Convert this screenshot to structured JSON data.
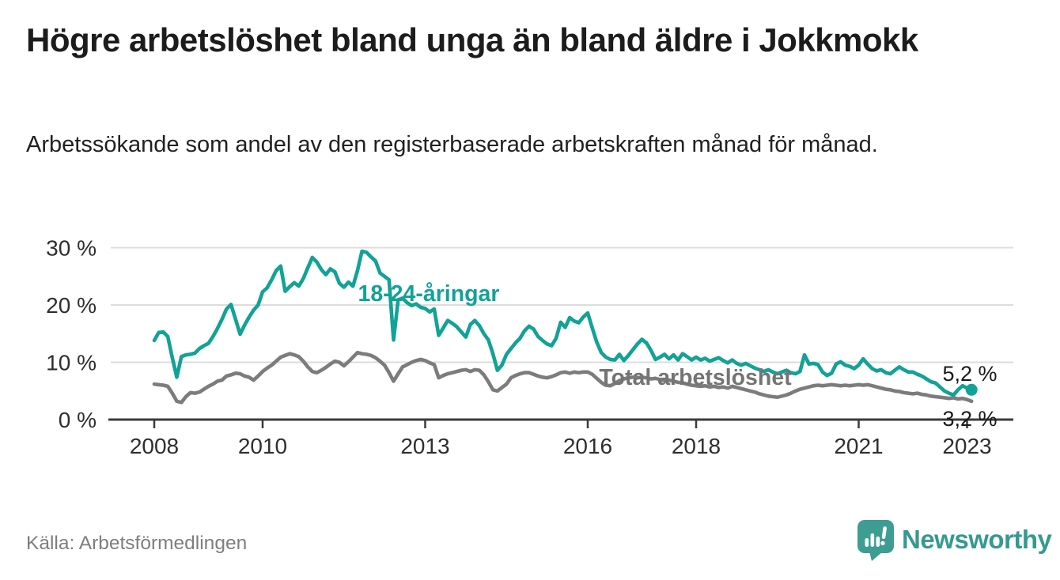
{
  "header": {
    "title": "Högre arbetslöshet bland unga än bland äldre i Jokkmokk",
    "subtitle": "Arbetssökande som andel av den registerbaserade arbetskraften månad för månad."
  },
  "footer": {
    "source": "Källa: Arbetsförmedlingen",
    "logo_text": "Newsworthy"
  },
  "colors": {
    "youth": "#12a296",
    "total": "#7c7c7c",
    "axis": "#3b3b3b",
    "grid": "#dcdcdc",
    "tick_label": "#2e2e2e",
    "end_label": "#191919",
    "total_label": "#747474",
    "logo_teal": "#3d9d93"
  },
  "chart_data": {
    "type": "line",
    "frequency": "monthly",
    "x_start": {
      "year": 2008,
      "month": 1
    },
    "x_end": {
      "year": 2023,
      "month": 2
    },
    "x_tick_years": [
      2008,
      2010,
      2013,
      2016,
      2018,
      2021,
      2023
    ],
    "y_ticks": [
      0,
      10,
      20,
      30
    ],
    "y_tick_suffix": " %",
    "ylim": [
      0,
      31.5
    ],
    "grid": true,
    "legend_position": "inline-labels",
    "series": [
      {
        "name": "18-24-åringar",
        "color": "#12a296",
        "last_value_label": "5,2 %",
        "values": [
          13.8,
          15.2,
          15.3,
          14.5,
          10.8,
          7.4,
          11.0,
          11.3,
          11.4,
          11.6,
          12.4,
          12.9,
          13.3,
          14.5,
          15.9,
          17.5,
          19.3,
          20.1,
          17.5,
          14.9,
          16.5,
          17.9,
          19.1,
          20.0,
          22.3,
          23.0,
          24.4,
          26.0,
          26.8,
          22.4,
          23.2,
          23.9,
          23.3,
          24.6,
          26.5,
          28.3,
          27.5,
          26.2,
          25.3,
          26.3,
          25.8,
          23.8,
          23.1,
          24.0,
          23.3,
          26.0,
          29.4,
          29.2,
          28.4,
          27.7,
          25.6,
          25.0,
          24.4,
          13.9,
          20.9,
          21.2,
          20.4,
          19.9,
          20.2,
          19.6,
          19.4,
          18.8,
          19.3,
          14.7,
          16.0,
          17.3,
          16.8,
          16.2,
          15.3,
          14.4,
          16.6,
          17.3,
          16.4,
          15.0,
          13.9,
          11.5,
          8.6,
          9.5,
          11.4,
          12.4,
          13.4,
          14.2,
          15.5,
          16.3,
          15.8,
          14.5,
          13.8,
          13.2,
          12.9,
          14.2,
          17.0,
          16.1,
          17.8,
          17.2,
          16.9,
          17.9,
          18.6,
          16.0,
          13.5,
          11.7,
          10.9,
          10.5,
          10.4,
          11.4,
          10.3,
          11.2,
          12.2,
          13.2,
          14.0,
          13.4,
          12.1,
          10.5,
          10.9,
          11.4,
          10.6,
          11.3,
          10.4,
          11.5,
          11.0,
          10.4,
          10.9,
          10.4,
          10.7,
          10.2,
          10.5,
          10.8,
          10.3,
          9.9,
          10.4,
          9.8,
          9.5,
          9.8,
          9.4,
          9.0,
          8.7,
          8.4,
          8.7,
          8.3,
          8.0,
          8.3,
          8.6,
          8.2,
          8.0,
          8.4,
          11.3,
          9.7,
          9.8,
          9.6,
          8.3,
          7.7,
          8.1,
          9.7,
          10.1,
          9.5,
          9.3,
          8.9,
          9.5,
          10.6,
          9.7,
          8.9,
          8.5,
          8.7,
          8.2,
          8.0,
          8.6,
          9.2,
          8.7,
          8.3,
          8.3,
          7.9,
          7.6,
          7.1,
          6.6,
          6.4,
          5.7,
          5.0,
          4.6,
          4.3,
          5.2,
          5.9,
          5.5,
          5.2
        ]
      },
      {
        "name": "Total arbetslöshet",
        "color": "#7c7c7c",
        "last_value_label": "3,2 %",
        "values": [
          6.2,
          6.1,
          6.0,
          5.8,
          4.6,
          3.2,
          3.0,
          4.0,
          4.7,
          4.6,
          4.8,
          5.3,
          5.8,
          6.2,
          6.7,
          6.9,
          7.6,
          7.8,
          8.1,
          8.0,
          7.6,
          7.4,
          6.9,
          7.6,
          8.4,
          9.0,
          9.5,
          10.2,
          10.9,
          11.2,
          11.5,
          11.3,
          11.0,
          10.2,
          9.2,
          8.4,
          8.2,
          8.6,
          9.1,
          9.7,
          10.2,
          10.0,
          9.4,
          10.1,
          10.9,
          11.7,
          11.5,
          11.4,
          11.2,
          10.8,
          10.2,
          9.5,
          8.2,
          6.7,
          8.0,
          9.2,
          9.6,
          10.0,
          10.3,
          10.5,
          10.3,
          9.9,
          9.6,
          7.3,
          7.7,
          8.0,
          8.2,
          8.4,
          8.6,
          8.7,
          8.4,
          8.7,
          8.6,
          7.8,
          6.6,
          5.2,
          5.0,
          5.6,
          6.2,
          7.3,
          7.7,
          8.0,
          8.2,
          8.2,
          7.9,
          7.6,
          7.4,
          7.3,
          7.5,
          7.8,
          8.2,
          8.3,
          8.1,
          8.3,
          8.2,
          8.3,
          8.3,
          7.9,
          7.2,
          6.5,
          6.0,
          5.9,
          6.3,
          6.8,
          7.1,
          7.3,
          7.4,
          7.3,
          7.4,
          7.3,
          7.1,
          7.2,
          7.0,
          6.8,
          6.9,
          6.7,
          6.5,
          6.4,
          6.2,
          6.0,
          5.9,
          5.8,
          5.9,
          5.7,
          5.8,
          5.6,
          5.7,
          5.5,
          5.8,
          5.6,
          5.4,
          5.2,
          5.0,
          4.8,
          4.5,
          4.3,
          4.1,
          4.0,
          3.9,
          4.1,
          4.3,
          4.6,
          5.0,
          5.3,
          5.5,
          5.7,
          5.9,
          6.0,
          5.9,
          6.0,
          6.1,
          6.0,
          5.9,
          6.0,
          5.9,
          6.0,
          6.1,
          6.0,
          6.1,
          5.9,
          5.7,
          5.5,
          5.3,
          5.2,
          5.0,
          4.9,
          4.7,
          4.6,
          4.5,
          4.6,
          4.4,
          4.3,
          4.1,
          4.0,
          3.9,
          3.8,
          3.7,
          3.8,
          3.6,
          3.7,
          3.5,
          3.2
        ]
      }
    ]
  }
}
